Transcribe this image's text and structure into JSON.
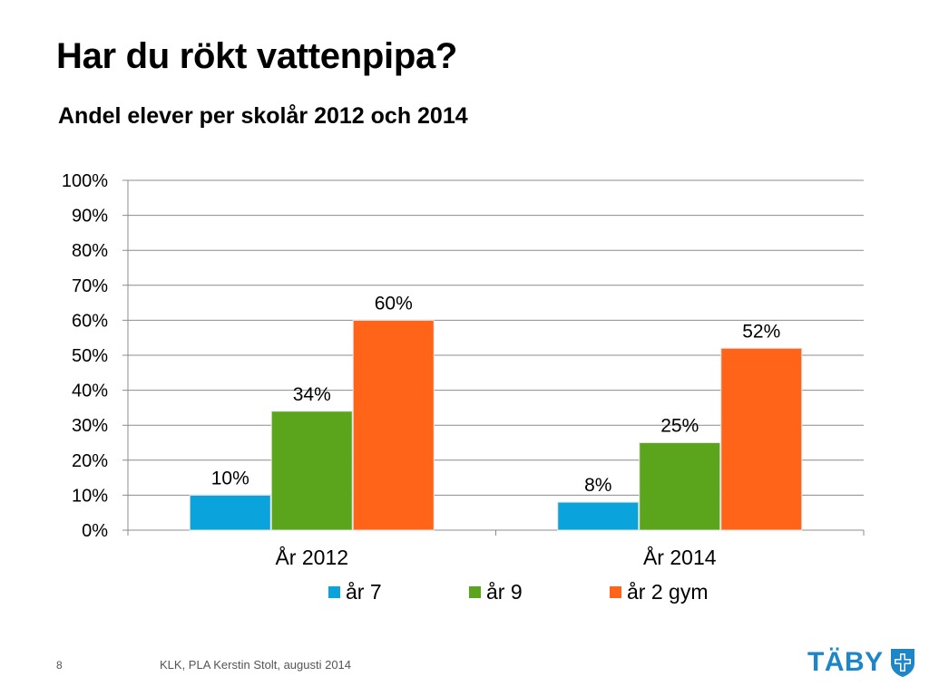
{
  "slide": {
    "title": "Har du rökt vattenpipa?",
    "subtitle": "Andel elever per skolår 2012 och 2014",
    "page_number": "8",
    "footer": "KLK, PLA Kerstin Stolt, augusti 2014",
    "logo_text": "TÄBY"
  },
  "chart_data": {
    "type": "bar",
    "categories": [
      "År 2012",
      "År 2014"
    ],
    "series": [
      {
        "name": "år 7",
        "values": [
          10,
          8
        ],
        "labels": [
          "10%",
          "8%"
        ],
        "color": "#0aa3db"
      },
      {
        "name": "år 9",
        "values": [
          34,
          25
        ],
        "labels": [
          "34%",
          "25%"
        ],
        "color": "#5aa51c"
      },
      {
        "name": "år 2 gym",
        "values": [
          60,
          52
        ],
        "labels": [
          "60%",
          "52%"
        ],
        "color": "#ff6418"
      }
    ],
    "y_ticks": [
      "0%",
      "10%",
      "20%",
      "30%",
      "40%",
      "50%",
      "60%",
      "70%",
      "80%",
      "90%",
      "100%"
    ],
    "ylim": [
      0,
      100
    ],
    "grid": true,
    "legend_position": "bottom"
  },
  "colors": {
    "logo": "#1c86c8",
    "grid": "#8c8c8c"
  }
}
